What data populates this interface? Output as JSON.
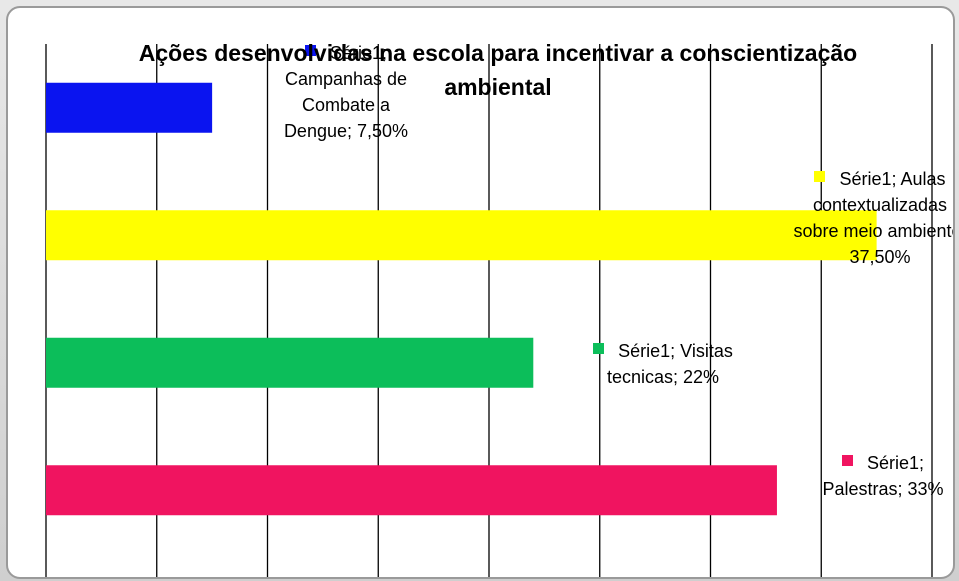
{
  "chart_data": {
    "type": "bar",
    "orientation": "horizontal",
    "title": "Ações desenvolvidas na escola para incentivar a conscientização ambiental",
    "categories": [
      "Campanhas de Combate a Dengue",
      "Aulas contextualizadas sobre meio ambiente",
      "Visitas tecnicas",
      "Palestras"
    ],
    "series": [
      {
        "name": "Série1",
        "values": [
          7.5,
          37.5,
          22,
          33
        ],
        "value_labels": [
          "7,50%",
          "37,50%",
          "22%",
          "33%"
        ],
        "colors": [
          "#0a14f0",
          "#ffff00",
          "#0cbe5a",
          "#f01460"
        ]
      }
    ],
    "xlim": [
      0,
      40
    ],
    "xticks": [
      0,
      5,
      10,
      15,
      20,
      25,
      30,
      35,
      40
    ],
    "grid": true
  }
}
